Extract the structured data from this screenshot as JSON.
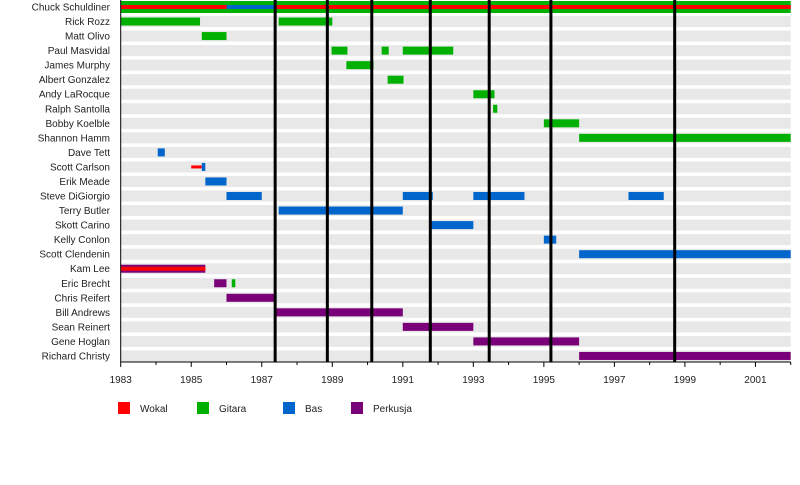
{
  "chart_data": {
    "type": "timeline",
    "title": "",
    "xlim": [
      1983,
      2002
    ],
    "x_ticks": [
      1983,
      1985,
      1987,
      1989,
      1991,
      1993,
      1995,
      1997,
      1999,
      2001
    ],
    "colors": {
      "vocals": "#ff0000",
      "guitar": "#00b000",
      "bass": "#0066cc",
      "drums": "#7a007a",
      "album_line": "#000000",
      "row_bg": "#e8e8e8"
    },
    "legend": [
      {
        "key": "vocals",
        "label": "Wokal"
      },
      {
        "key": "guitar",
        "label": "Gitara"
      },
      {
        "key": "bass",
        "label": "Bas"
      },
      {
        "key": "drums",
        "label": "Perkusja"
      }
    ],
    "album_releases": [
      1987.38,
      1988.86,
      1990.12,
      1991.78,
      1993.45,
      1995.2,
      1998.71
    ],
    "members": [
      {
        "name": "Chuck Schuldiner",
        "periods": [
          {
            "role": "guitar",
            "start": 1983,
            "end": 2002,
            "style": "full"
          },
          {
            "role": "vocals",
            "start": 1983,
            "end": 2002,
            "style": "stripe"
          },
          {
            "role": "bass",
            "start": 1986.0,
            "end": 1987.4,
            "style": "stripe"
          }
        ]
      },
      {
        "name": "Rick Rozz",
        "periods": [
          {
            "role": "guitar",
            "start": 1983,
            "end": 1985.25
          },
          {
            "role": "guitar",
            "start": 1987.48,
            "end": 1989.0
          }
        ]
      },
      {
        "name": "Matt Olivo",
        "periods": [
          {
            "role": "guitar",
            "start": 1985.3,
            "end": 1986.0
          }
        ]
      },
      {
        "name": "Paul Masvidal",
        "periods": [
          {
            "role": "guitar",
            "start": 1988.98,
            "end": 1989.43
          },
          {
            "role": "guitar",
            "start": 1990.4,
            "end": 1990.6
          },
          {
            "role": "guitar",
            "start": 1991.0,
            "end": 1992.43
          }
        ]
      },
      {
        "name": "James Murphy",
        "periods": [
          {
            "role": "guitar",
            "start": 1989.4,
            "end": 1990.17
          }
        ]
      },
      {
        "name": "Albert Gonzalez",
        "periods": [
          {
            "role": "guitar",
            "start": 1990.57,
            "end": 1991.02
          }
        ]
      },
      {
        "name": "Andy LaRocque",
        "periods": [
          {
            "role": "guitar",
            "start": 1993.0,
            "end": 1993.6
          }
        ]
      },
      {
        "name": "Ralph Santolla",
        "periods": [
          {
            "role": "guitar",
            "start": 1993.56,
            "end": 1993.68
          }
        ]
      },
      {
        "name": "Bobby Koelble",
        "periods": [
          {
            "role": "guitar",
            "start": 1995.0,
            "end": 1996.0
          }
        ]
      },
      {
        "name": "Shannon Hamm",
        "periods": [
          {
            "role": "guitar",
            "start": 1996.0,
            "end": 2002
          }
        ]
      },
      {
        "name": "Dave Tett",
        "periods": [
          {
            "role": "bass",
            "start": 1984.05,
            "end": 1984.25
          }
        ]
      },
      {
        "name": "Scott Carlson",
        "periods": [
          {
            "role": "vocals",
            "start": 1985.0,
            "end": 1985.3,
            "style": "thin"
          },
          {
            "role": "bass",
            "start": 1985.3,
            "end": 1985.4
          }
        ]
      },
      {
        "name": "Erik Meade",
        "periods": [
          {
            "role": "bass",
            "start": 1985.4,
            "end": 1986.0
          }
        ]
      },
      {
        "name": "Steve DiGiorgio",
        "periods": [
          {
            "role": "bass",
            "start": 1986.0,
            "end": 1987.0
          },
          {
            "role": "bass",
            "start": 1991.0,
            "end": 1991.85
          },
          {
            "role": "bass",
            "start": 1993.0,
            "end": 1994.45
          },
          {
            "role": "bass",
            "start": 1997.4,
            "end": 1998.4
          }
        ]
      },
      {
        "name": "Terry Butler",
        "periods": [
          {
            "role": "bass",
            "start": 1987.48,
            "end": 1991.0
          }
        ]
      },
      {
        "name": "Skott Carino",
        "periods": [
          {
            "role": "bass",
            "start": 1991.8,
            "end": 1993.0
          }
        ]
      },
      {
        "name": "Kelly Conlon",
        "periods": [
          {
            "role": "bass",
            "start": 1995.0,
            "end": 1995.35
          }
        ]
      },
      {
        "name": "Scott Clendenin",
        "periods": [
          {
            "role": "bass",
            "start": 1996.0,
            "end": 2002
          }
        ]
      },
      {
        "name": "Kam Lee",
        "periods": [
          {
            "role": "drums",
            "start": 1983,
            "end": 1985.4
          },
          {
            "role": "vocals",
            "start": 1983,
            "end": 1985.4,
            "style": "stripe"
          }
        ]
      },
      {
        "name": "Eric Brecht",
        "periods": [
          {
            "role": "drums",
            "start": 1985.65,
            "end": 1986.0
          },
          {
            "role": "guitar",
            "start": 1986.15,
            "end": 1986.25
          }
        ]
      },
      {
        "name": "Chris Reifert",
        "periods": [
          {
            "role": "drums",
            "start": 1986.0,
            "end": 1987.4
          }
        ]
      },
      {
        "name": "Bill Andrews",
        "periods": [
          {
            "role": "drums",
            "start": 1987.4,
            "end": 1991.0
          }
        ]
      },
      {
        "name": "Sean Reinert",
        "periods": [
          {
            "role": "drums",
            "start": 1991.0,
            "end": 1993.0
          }
        ]
      },
      {
        "name": "Gene Hoglan",
        "periods": [
          {
            "role": "drums",
            "start": 1993.0,
            "end": 1996.0
          }
        ]
      },
      {
        "name": "Richard Christy",
        "periods": [
          {
            "role": "drums",
            "start": 1996.0,
            "end": 2002
          }
        ]
      }
    ]
  }
}
